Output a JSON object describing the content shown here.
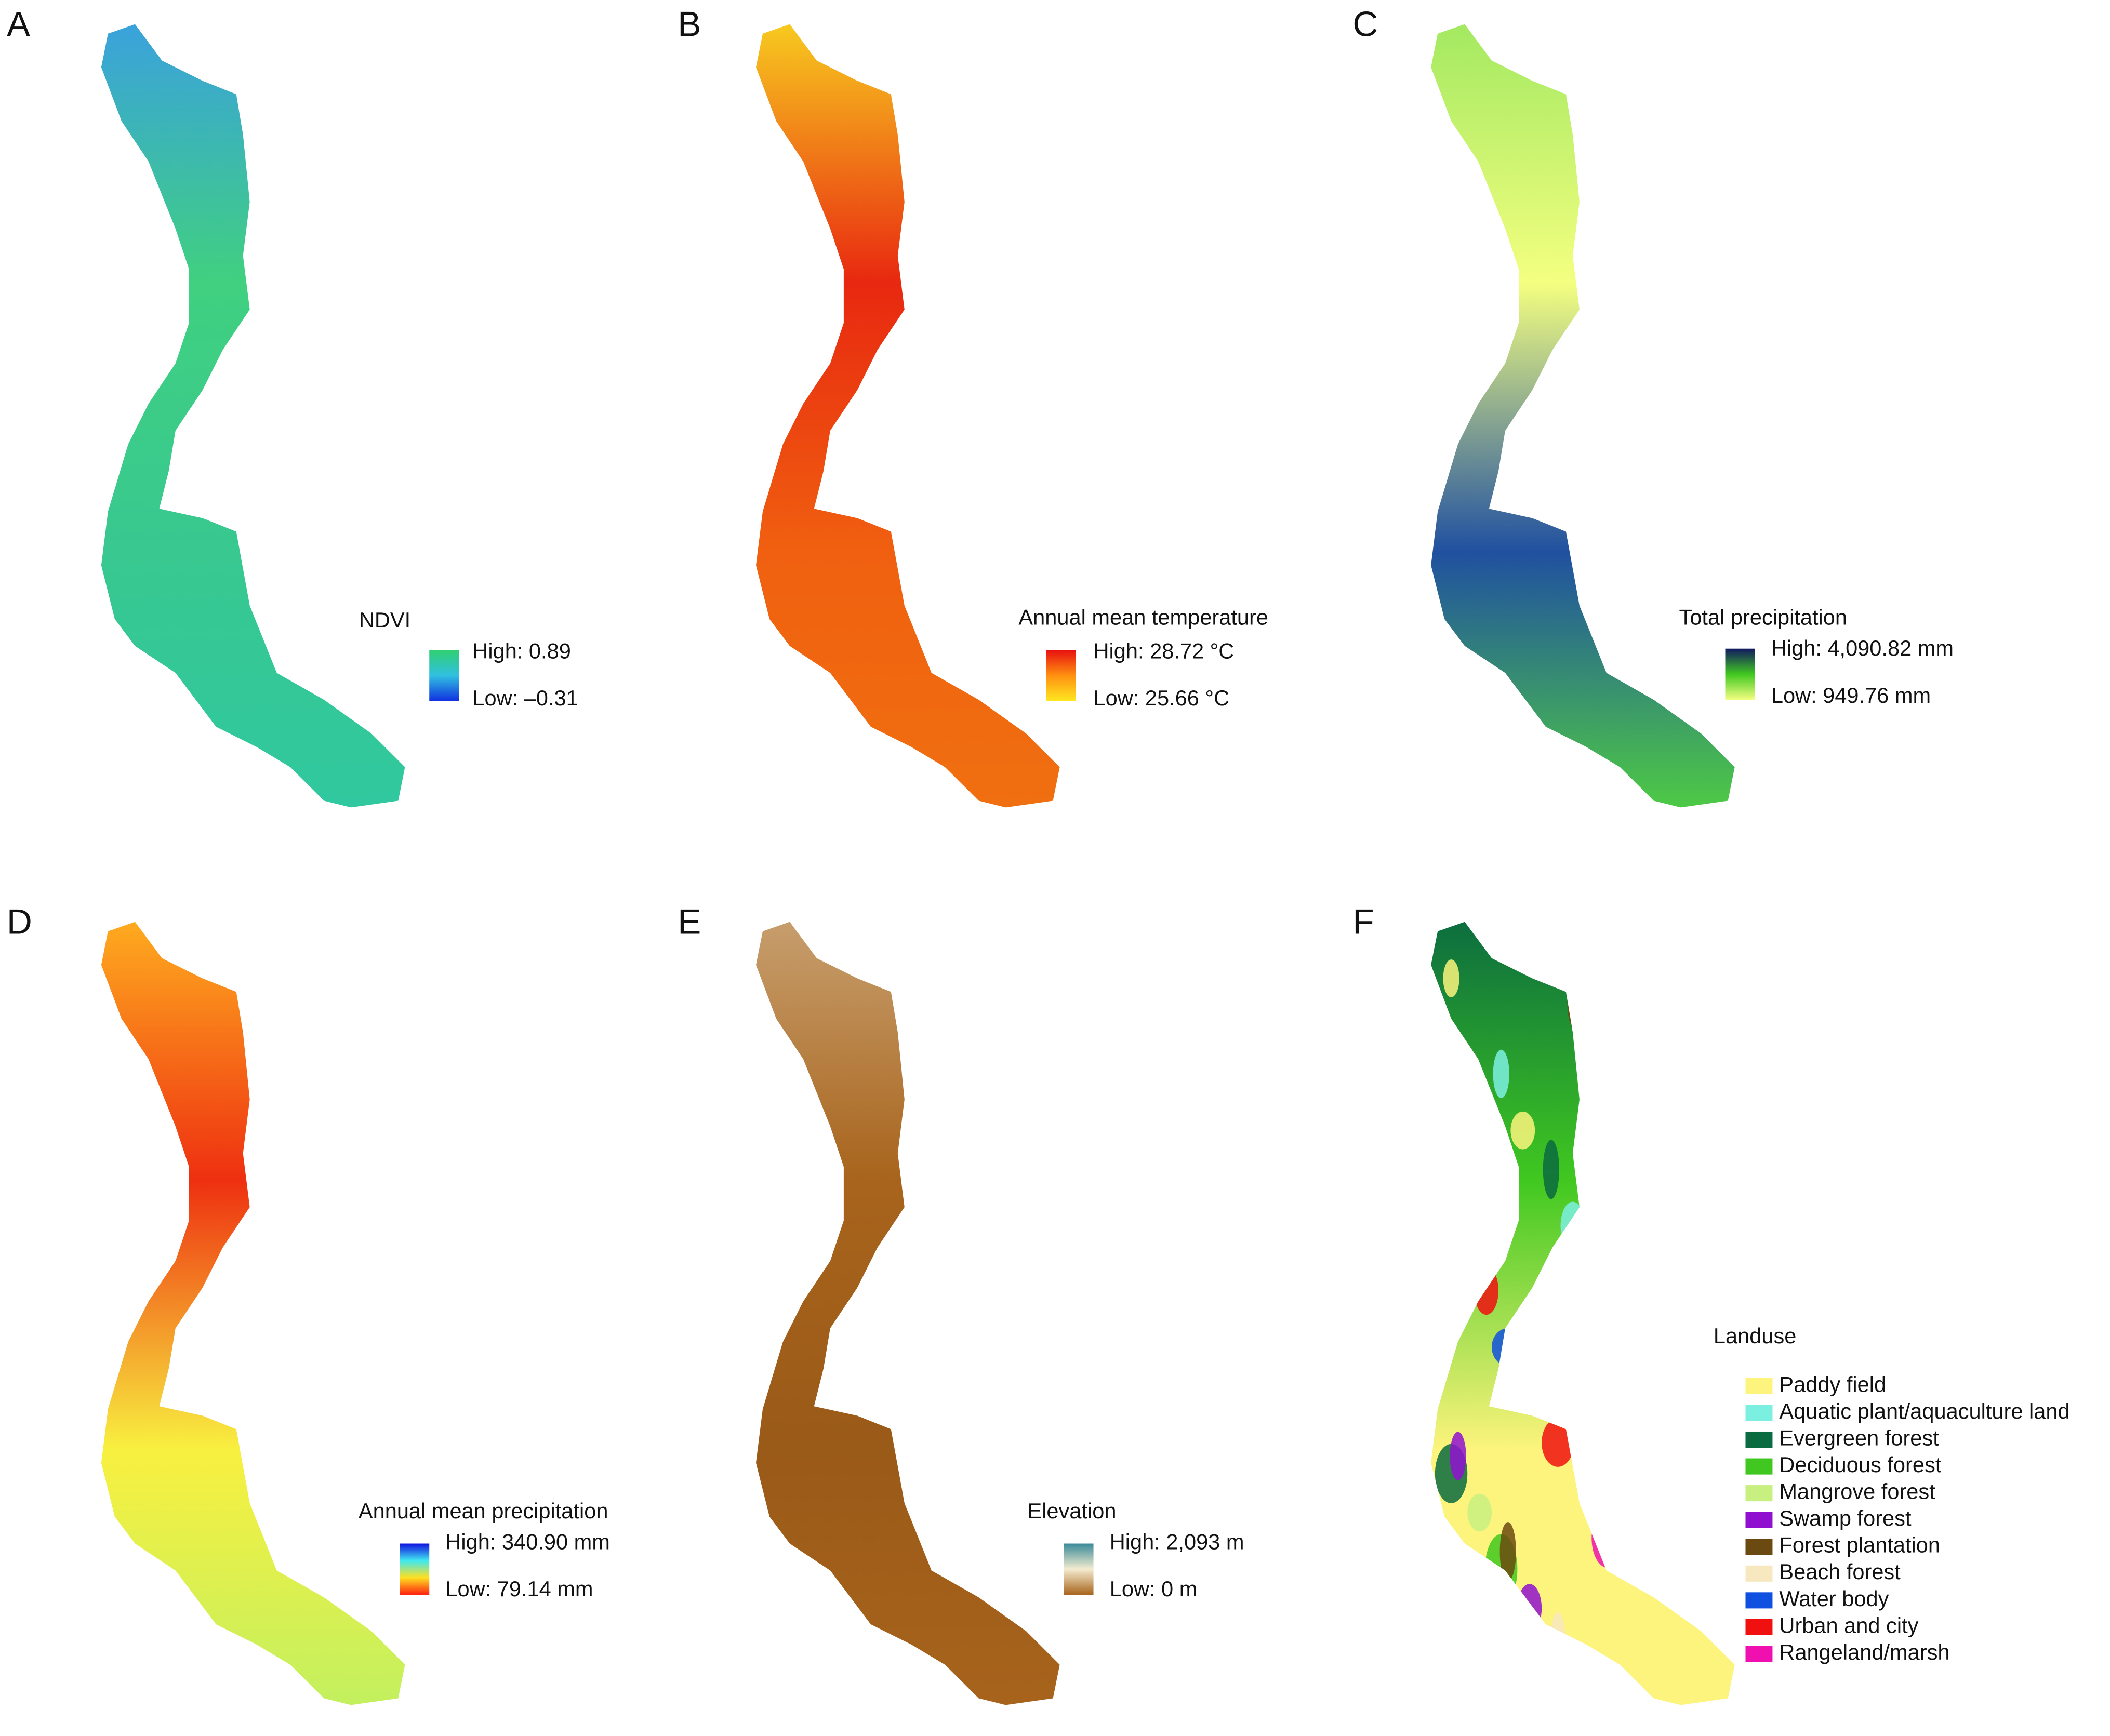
{
  "panels": [
    {
      "label": "A",
      "legend_title": "NDVI",
      "high": "High: 0.89",
      "low": "Low: –0.31",
      "colors": [
        "#1030e0",
        "#30c0e0",
        "#30d070"
      ]
    },
    {
      "label": "B",
      "legend_title": "Annual mean temperature",
      "high": "High: 28.72 °C",
      "low": "Low: 25.66 °C",
      "colors": [
        "#ffe820",
        "#ff9010",
        "#e81010"
      ]
    },
    {
      "label": "C",
      "legend_title": "Total precipitation",
      "high": "High: 4,090.82 mm",
      "low": "Low: 949.76 mm",
      "colors": [
        "#f4ff80",
        "#40c820",
        "#101860"
      ]
    },
    {
      "label": "D",
      "legend_title": "Annual mean precipitation",
      "high": "High: 340.90 mm",
      "low": "Low: 79.14 mm",
      "colors": [
        "#ff2010",
        "#ffe020",
        "#40e8f0",
        "#1010e0"
      ]
    },
    {
      "label": "E",
      "legend_title": "Elevation",
      "high": "High: 2,093 m",
      "low": "Low: 0 m",
      "colors": [
        "#a8641c",
        "#f4ecd0",
        "#3a8a98"
      ]
    },
    {
      "label": "F",
      "legend_title": "Landuse"
    }
  ],
  "landuse": [
    {
      "name": "Paddy field",
      "color": "#fcf47c"
    },
    {
      "name": "Aquatic plant/aquaculture land",
      "color": "#7cf0e0"
    },
    {
      "name": "Evergreen forest",
      "color": "#0a6a40"
    },
    {
      "name": "Deciduous forest",
      "color": "#40c820"
    },
    {
      "name": "Mangrove forest",
      "color": "#c8f080"
    },
    {
      "name": "Swamp forest",
      "color": "#9010d0"
    },
    {
      "name": "Forest plantation",
      "color": "#6a4a10"
    },
    {
      "name": "Beach forest",
      "color": "#f8e8c0"
    },
    {
      "name": "Water body",
      "color": "#1050e0"
    },
    {
      "name": "Urban and city",
      "color": "#f01010"
    },
    {
      "name": "Rangeland/marsh",
      "color": "#f010b0"
    }
  ]
}
